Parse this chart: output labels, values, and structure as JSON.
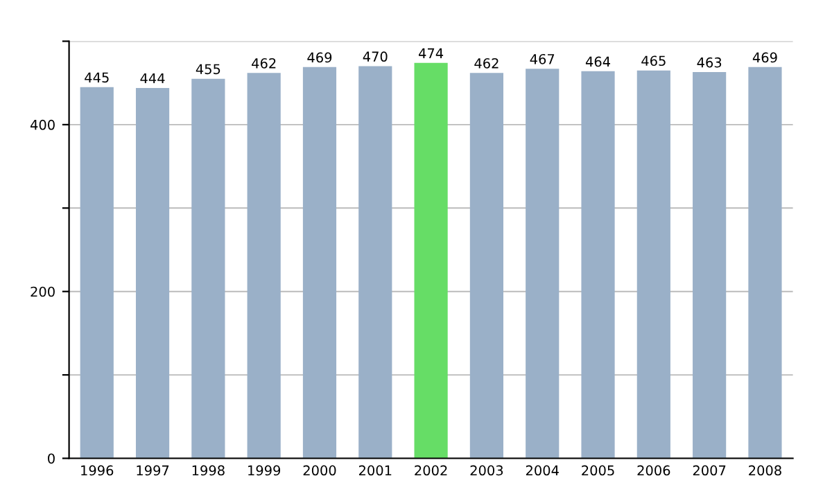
{
  "chart_data": {
    "type": "bar",
    "categories": [
      "1996",
      "1997",
      "1998",
      "1999",
      "2000",
      "2001",
      "2002",
      "2003",
      "2004",
      "2005",
      "2006",
      "2007",
      "2008"
    ],
    "values": [
      445,
      444,
      455,
      462,
      469,
      470,
      474,
      462,
      467,
      464,
      465,
      463,
      469
    ],
    "colors": [
      "#9ab0c8",
      "#9ab0c8",
      "#9ab0c8",
      "#9ab0c8",
      "#9ab0c8",
      "#9ab0c8",
      "#66dd66",
      "#9ab0c8",
      "#9ab0c8",
      "#9ab0c8",
      "#9ab0c8",
      "#9ab0c8",
      "#9ab0c8"
    ],
    "data_labels": true,
    "ylim": [
      0,
      500
    ],
    "yticks": [
      0,
      {
        "value": 100,
        "label": null
      },
      200,
      {
        "value": 300,
        "label": null
      },
      400,
      {
        "value": 500,
        "label": null
      }
    ],
    "grid": "y"
  }
}
